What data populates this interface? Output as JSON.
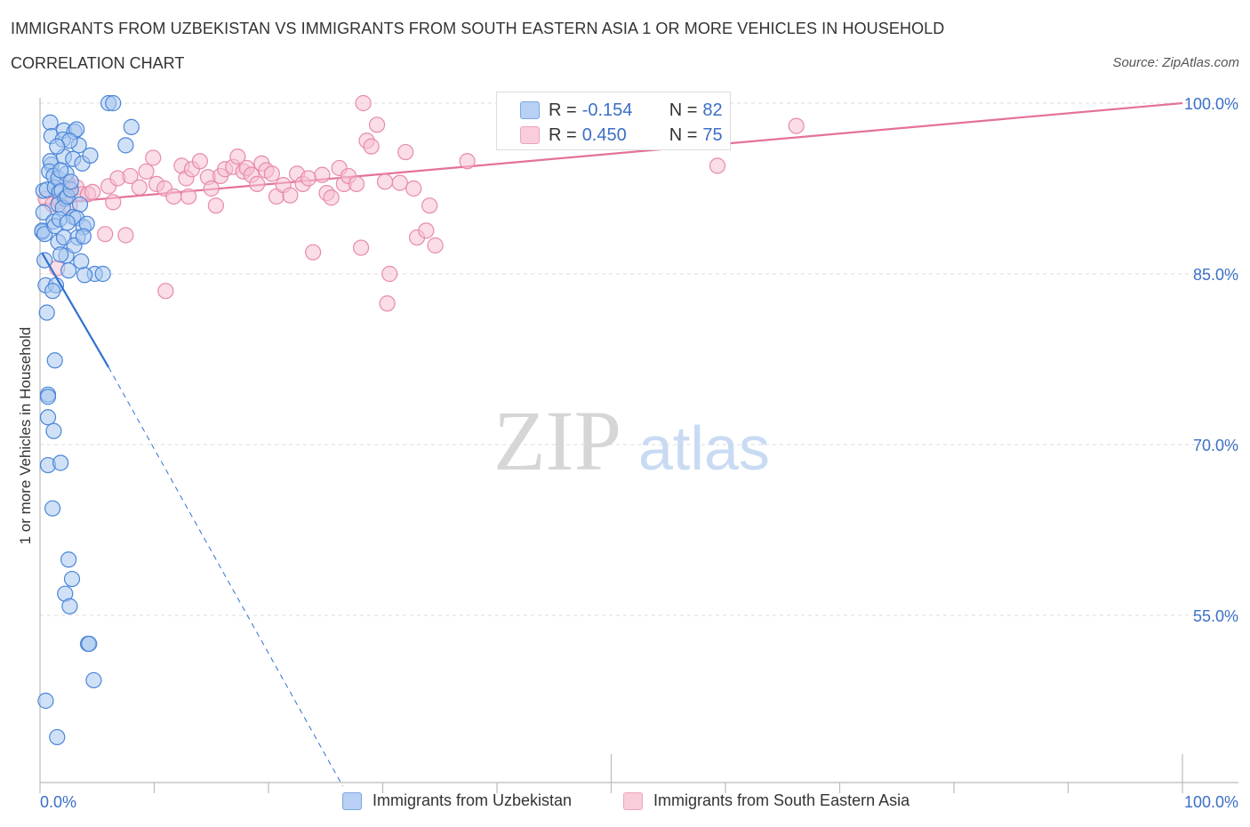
{
  "title": "IMMIGRANTS FROM UZBEKISTAN VS IMMIGRANTS FROM SOUTH EASTERN ASIA 1 OR MORE VEHICLES IN HOUSEHOLD",
  "subtitle": "CORRELATION CHART",
  "source": "Source: ZipAtlas.com",
  "watermark": {
    "zip": "ZIP",
    "atlas": "atlas"
  },
  "legend_box": {
    "rows": [
      {
        "r_label": "R =",
        "r_value": "-0.154",
        "n_label": "N =",
        "n_value": "82"
      },
      {
        "r_label": "R =",
        "r_value": "0.450",
        "n_label": "N =",
        "n_value": "75"
      }
    ]
  },
  "bottom_legend": {
    "series1": "Immigrants from Uzbekistan",
    "series2": "Immigrants from South Eastern Asia"
  },
  "colors": {
    "blue_fill": "#a9c8f0",
    "blue_stroke": "#4a86d8",
    "blue_line": "#2f72d0",
    "pink_fill": "#f6c1d2",
    "pink_stroke": "#e88aa9",
    "pink_line": "#e4719a",
    "tick_label": "#3b6fc7",
    "grid": "#dddddd"
  },
  "chart_data": {
    "type": "scatter",
    "title": "IMMIGRANTS FROM UZBEKISTAN VS IMMIGRANTS FROM SOUTH EASTERN ASIA 1 OR MORE VEHICLES IN HOUSEHOLD",
    "xlabel": "",
    "ylabel": "1 or more Vehicles in Household",
    "xlim": [
      0,
      100
    ],
    "ylim": [
      40,
      100
    ],
    "x_tick_labels": [
      "0.0%",
      "100.0%"
    ],
    "y_ticks": [
      100,
      85,
      70,
      55
    ],
    "y_tick_labels": [
      "100.0%",
      "85.0%",
      "70.0%",
      "55.0%"
    ],
    "grid": true,
    "legend_position": "bottom",
    "series": [
      {
        "name": "Immigrants from Uzbekistan",
        "color": "#a9c8f0",
        "points": [
          [
            0.3,
            92.3
          ],
          [
            0.6,
            92.4
          ],
          [
            0.3,
            90.4
          ],
          [
            0.2,
            88.7
          ],
          [
            0.2,
            88.8
          ],
          [
            0.4,
            88.5
          ],
          [
            0.4,
            86.2
          ],
          [
            0.5,
            84.0
          ],
          [
            0.6,
            81.6
          ],
          [
            0.9,
            98.3
          ],
          [
            1.0,
            97.1
          ],
          [
            1.0,
            94.6
          ],
          [
            0.9,
            94.9
          ],
          [
            0.8,
            94.0
          ],
          [
            1.2,
            93.6
          ],
          [
            1.3,
            92.6
          ],
          [
            1.6,
            93.4
          ],
          [
            1.7,
            92.2
          ],
          [
            1.6,
            91.1
          ],
          [
            1.2,
            89.6
          ],
          [
            1.3,
            89.2
          ],
          [
            1.6,
            87.8
          ],
          [
            2.1,
            97.6
          ],
          [
            2.0,
            96.8
          ],
          [
            2.1,
            95.3
          ],
          [
            2.3,
            93.8
          ],
          [
            1.9,
            92.3
          ],
          [
            2.2,
            91.6
          ],
          [
            2.0,
            90.8
          ],
          [
            2.4,
            91.8
          ],
          [
            2.1,
            88.2
          ],
          [
            2.3,
            86.6
          ],
          [
            2.5,
            85.3
          ],
          [
            1.4,
            84.0
          ],
          [
            1.1,
            83.5
          ],
          [
            1.3,
            77.4
          ],
          [
            0.7,
            74.4
          ],
          [
            0.7,
            74.2
          ],
          [
            0.7,
            72.4
          ],
          [
            1.2,
            71.2
          ],
          [
            0.7,
            68.2
          ],
          [
            1.8,
            68.4
          ],
          [
            1.1,
            64.4
          ],
          [
            2.5,
            59.9
          ],
          [
            2.8,
            58.2
          ],
          [
            2.2,
            56.9
          ],
          [
            2.6,
            55.8
          ],
          [
            4.2,
            52.5
          ],
          [
            4.3,
            52.5
          ],
          [
            4.7,
            49.3
          ],
          [
            0.5,
            47.5
          ],
          [
            1.5,
            44.3
          ],
          [
            3.0,
            97.5
          ],
          [
            3.2,
            97.7
          ],
          [
            3.4,
            96.3
          ],
          [
            2.9,
            95.1
          ],
          [
            3.7,
            94.7
          ],
          [
            2.7,
            92.4
          ],
          [
            3.5,
            91.1
          ],
          [
            2.9,
            90.0
          ],
          [
            3.2,
            89.9
          ],
          [
            3.8,
            89.1
          ],
          [
            4.1,
            89.4
          ],
          [
            3.3,
            88.2
          ],
          [
            3.0,
            87.5
          ],
          [
            3.6,
            86.1
          ],
          [
            4.8,
            85.0
          ],
          [
            3.9,
            84.9
          ],
          [
            5.5,
            85.0
          ],
          [
            6.0,
            100.0
          ],
          [
            6.4,
            100.0
          ],
          [
            8.0,
            97.9
          ],
          [
            7.5,
            96.3
          ],
          [
            2.6,
            96.7
          ],
          [
            1.5,
            96.2
          ],
          [
            4.4,
            95.4
          ],
          [
            1.8,
            94.1
          ],
          [
            2.7,
            93.1
          ],
          [
            1.7,
            89.8
          ],
          [
            2.4,
            89.5
          ],
          [
            3.8,
            88.3
          ],
          [
            1.8,
            86.7
          ]
        ]
      },
      {
        "name": "Immigrants from South Eastern Asia",
        "color": "#f6c1d2",
        "points": [
          [
            0.5,
            91.6
          ],
          [
            1.1,
            91.1
          ],
          [
            1.5,
            85.5
          ],
          [
            1.7,
            91.4
          ],
          [
            2.4,
            93.0
          ],
          [
            2.6,
            91.0
          ],
          [
            3.2,
            92.6
          ],
          [
            3.6,
            92.0
          ],
          [
            4.2,
            92.0
          ],
          [
            4.6,
            92.2
          ],
          [
            5.7,
            88.5
          ],
          [
            6.0,
            92.7
          ],
          [
            6.4,
            91.3
          ],
          [
            6.8,
            93.4
          ],
          [
            7.5,
            88.4
          ],
          [
            7.9,
            93.6
          ],
          [
            8.7,
            92.6
          ],
          [
            9.3,
            94.0
          ],
          [
            9.9,
            95.2
          ],
          [
            10.2,
            92.9
          ],
          [
            10.9,
            92.5
          ],
          [
            11.0,
            83.5
          ],
          [
            11.7,
            91.8
          ],
          [
            12.4,
            94.5
          ],
          [
            12.8,
            93.4
          ],
          [
            13.0,
            91.8
          ],
          [
            13.3,
            94.2
          ],
          [
            14.0,
            94.9
          ],
          [
            14.7,
            93.5
          ],
          [
            15.0,
            92.5
          ],
          [
            15.4,
            91.0
          ],
          [
            15.8,
            93.6
          ],
          [
            16.2,
            94.2
          ],
          [
            16.9,
            94.4
          ],
          [
            17.3,
            95.3
          ],
          [
            17.8,
            94.0
          ],
          [
            18.1,
            94.3
          ],
          [
            18.5,
            93.7
          ],
          [
            19.0,
            92.9
          ],
          [
            19.4,
            94.7
          ],
          [
            19.8,
            94.1
          ],
          [
            20.3,
            93.8
          ],
          [
            20.7,
            91.8
          ],
          [
            21.3,
            92.8
          ],
          [
            21.9,
            91.9
          ],
          [
            22.5,
            93.8
          ],
          [
            23.0,
            92.9
          ],
          [
            23.5,
            93.4
          ],
          [
            23.9,
            86.9
          ],
          [
            24.7,
            93.7
          ],
          [
            25.1,
            92.1
          ],
          [
            25.5,
            91.7
          ],
          [
            26.2,
            94.3
          ],
          [
            26.6,
            92.9
          ],
          [
            27.0,
            93.6
          ],
          [
            27.7,
            92.9
          ],
          [
            28.1,
            87.3
          ],
          [
            28.6,
            96.7
          ],
          [
            29.0,
            96.2
          ],
          [
            28.3,
            100.0
          ],
          [
            29.5,
            98.1
          ],
          [
            30.2,
            93.1
          ],
          [
            30.6,
            85.0
          ],
          [
            30.4,
            82.4
          ],
          [
            31.5,
            93.0
          ],
          [
            32.0,
            95.7
          ],
          [
            32.7,
            92.5
          ],
          [
            33.0,
            88.2
          ],
          [
            33.8,
            88.8
          ],
          [
            34.1,
            91.0
          ],
          [
            34.6,
            87.5
          ],
          [
            37.4,
            94.9
          ],
          [
            59.3,
            94.5
          ],
          [
            57.3,
            100.0
          ],
          [
            66.2,
            98.0
          ]
        ]
      }
    ],
    "trend_lines": [
      {
        "series": "Immigrants from Uzbekistan",
        "x": [
          0.2,
          6.0
        ],
        "y": [
          86.8,
          76.8
        ],
        "dashed_extension_to": [
          26.5,
          40.0
        ]
      },
      {
        "series": "Immigrants from South Eastern Asia",
        "x": [
          0.0,
          100.0
        ],
        "y": [
          91.1,
          100.0
        ]
      }
    ]
  }
}
